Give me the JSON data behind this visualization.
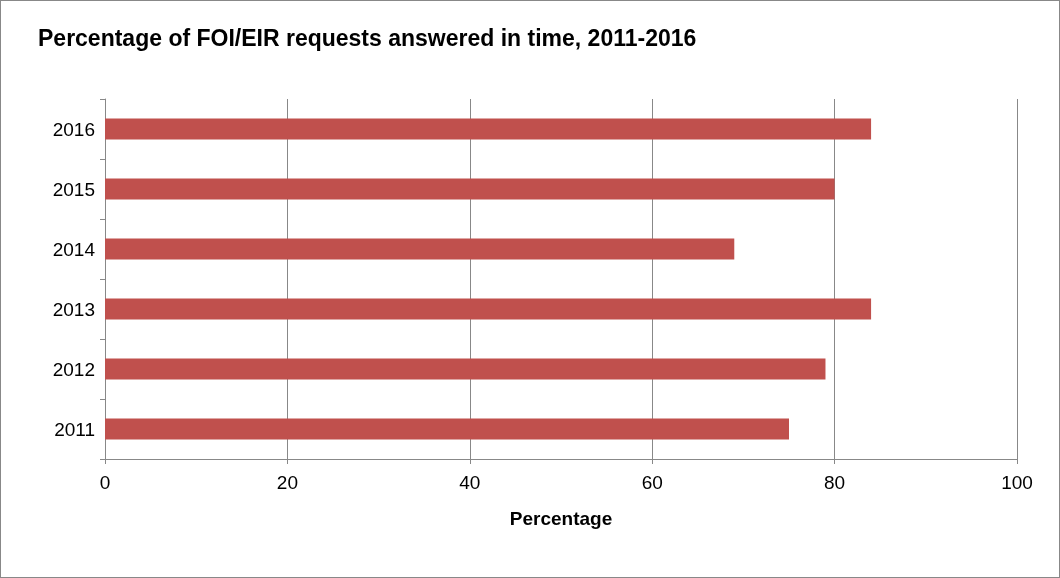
{
  "chart_data": {
    "type": "bar",
    "orientation": "horizontal",
    "title": "Percentage of FOI/EIR requests answered in time, 2011-2016",
    "xlabel": "Percentage",
    "categories": [
      "2016",
      "2015",
      "2014",
      "2013",
      "2012",
      "2011"
    ],
    "values": [
      84,
      80,
      69,
      84,
      79,
      75
    ],
    "color": "#c0504d",
    "xlim": [
      0,
      100
    ],
    "xticks": [
      0,
      20,
      40,
      60,
      80,
      100
    ],
    "grid": "x"
  }
}
